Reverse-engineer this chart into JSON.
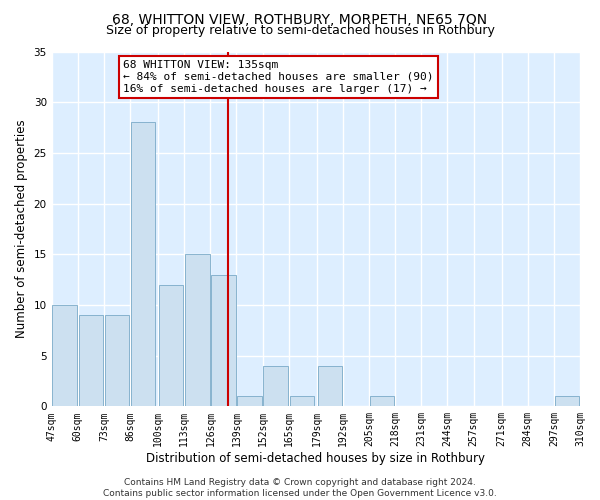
{
  "title": "68, WHITTON VIEW, ROTHBURY, MORPETH, NE65 7QN",
  "subtitle": "Size of property relative to semi-detached houses in Rothbury",
  "xlabel": "Distribution of semi-detached houses by size in Rothbury",
  "ylabel": "Number of semi-detached properties",
  "bins": [
    47,
    60,
    73,
    86,
    100,
    113,
    126,
    139,
    152,
    165,
    179,
    192,
    205,
    218,
    231,
    244,
    257,
    271,
    284,
    297,
    310
  ],
  "counts": [
    10,
    9,
    9,
    28,
    12,
    15,
    13,
    1,
    4,
    1,
    4,
    0,
    1,
    0,
    0,
    0,
    0,
    0,
    0,
    1
  ],
  "bar_color": "#cce0f0",
  "bar_edge_color": "#7aaac8",
  "vline_x": 135,
  "vline_color": "#cc0000",
  "annotation_text": "68 WHITTON VIEW: 135sqm\n← 84% of semi-detached houses are smaller (90)\n16% of semi-detached houses are larger (17) →",
  "annotation_box_facecolor": "#ffffff",
  "annotation_box_edgecolor": "#cc0000",
  "ylim": [
    0,
    35
  ],
  "yticks": [
    0,
    5,
    10,
    15,
    20,
    25,
    30,
    35
  ],
  "tick_labels": [
    "47sqm",
    "60sqm",
    "73sqm",
    "86sqm",
    "100sqm",
    "113sqm",
    "126sqm",
    "139sqm",
    "152sqm",
    "165sqm",
    "179sqm",
    "192sqm",
    "205sqm",
    "218sqm",
    "231sqm",
    "244sqm",
    "257sqm",
    "271sqm",
    "284sqm",
    "297sqm",
    "310sqm"
  ],
  "footer": "Contains HM Land Registry data © Crown copyright and database right 2024.\nContains public sector information licensed under the Open Government Licence v3.0.",
  "bg_color": "#ffffff",
  "ax_bg_color": "#ddeeff",
  "grid_color": "#ffffff",
  "title_fontsize": 10,
  "subtitle_fontsize": 9,
  "axis_label_fontsize": 8.5,
  "tick_fontsize": 7,
  "annot_fontsize": 8,
  "footer_fontsize": 6.5
}
